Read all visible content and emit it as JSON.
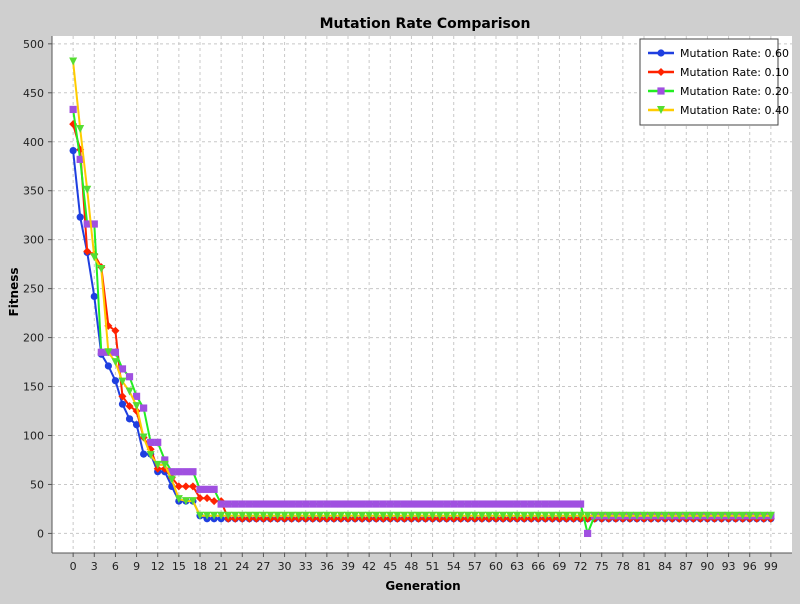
{
  "chart_data": {
    "type": "line",
    "title": "Mutation Rate Comparison",
    "xlabel": "Generation",
    "ylabel": "Fitness",
    "xlim": [
      -3,
      102
    ],
    "ylim": [
      -20,
      508
    ],
    "x_ticks": [
      0,
      3,
      6,
      9,
      12,
      15,
      18,
      21,
      24,
      27,
      30,
      33,
      36,
      39,
      42,
      45,
      48,
      51,
      54,
      57,
      60,
      63,
      66,
      69,
      72,
      75,
      78,
      81,
      84,
      87,
      90,
      93,
      96,
      99
    ],
    "y_ticks": [
      0,
      50,
      100,
      150,
      200,
      250,
      300,
      350,
      400,
      450,
      500
    ],
    "grid": true,
    "legend_position": "top-right",
    "series": [
      {
        "name": "Mutation Rate: 0.60",
        "color": "#1f3fe0",
        "marker": "circle",
        "x": [
          0,
          1,
          2,
          3,
          4,
          5,
          6,
          7,
          8,
          9,
          10,
          11,
          12,
          13,
          14,
          15,
          16,
          17,
          18,
          19,
          20,
          21,
          22,
          23,
          24,
          25,
          26,
          27,
          28,
          29,
          30,
          31,
          32,
          33,
          34,
          35,
          36,
          37,
          38,
          39,
          40,
          41,
          42,
          43,
          44,
          45,
          46,
          47,
          48,
          49,
          50,
          51,
          52,
          53,
          54,
          55,
          56,
          57,
          58,
          59,
          60,
          61,
          62,
          63,
          64,
          65,
          66,
          67,
          68,
          69,
          70,
          71,
          72,
          73,
          74,
          75,
          76,
          77,
          78,
          79,
          80,
          81,
          82,
          83,
          84,
          85,
          86,
          87,
          88,
          89,
          90,
          91,
          92,
          93,
          94,
          95,
          96,
          97,
          98,
          99
        ],
        "y": [
          391,
          323,
          287,
          242,
          183,
          171,
          156,
          132,
          117,
          111,
          81,
          81,
          63,
          63,
          48,
          33,
          33,
          33,
          18,
          15,
          15,
          15,
          15,
          15,
          15,
          15,
          15,
          15,
          15,
          15,
          15,
          15,
          15,
          15,
          15,
          15,
          15,
          15,
          15,
          15,
          15,
          15,
          15,
          15,
          15,
          15,
          15,
          15,
          15,
          15,
          15,
          15,
          15,
          15,
          15,
          15,
          15,
          15,
          15,
          15,
          15,
          15,
          15,
          15,
          15,
          15,
          15,
          15,
          15,
          15,
          15,
          15,
          15,
          15,
          15,
          15,
          15,
          15,
          15,
          15,
          15,
          15,
          15,
          15,
          15,
          15,
          15,
          15,
          15,
          15,
          15,
          15,
          15,
          15,
          15,
          15,
          15,
          15,
          15,
          15
        ]
      },
      {
        "name": "Mutation Rate: 0.10",
        "color": "#ff2200",
        "marker": "diamond",
        "x": [
          0,
          1,
          2,
          3,
          4,
          5,
          6,
          7,
          8,
          9,
          10,
          11,
          12,
          13,
          14,
          15,
          16,
          17,
          18,
          19,
          20,
          21,
          22,
          23,
          24,
          25,
          26,
          27,
          28,
          29,
          30,
          31,
          32,
          33,
          34,
          35,
          36,
          37,
          38,
          39,
          40,
          41,
          42,
          43,
          44,
          45,
          46,
          47,
          48,
          49,
          50,
          51,
          52,
          53,
          54,
          55,
          56,
          57,
          58,
          59,
          60,
          61,
          62,
          63,
          64,
          65,
          66,
          67,
          68,
          69,
          70,
          71,
          72,
          73,
          74,
          75,
          76,
          77,
          78,
          79,
          80,
          81,
          82,
          83,
          84,
          85,
          86,
          87,
          88,
          89,
          90,
          91,
          92,
          93,
          94,
          95,
          96,
          97,
          98,
          99
        ],
        "y": [
          418,
          392,
          288,
          285,
          272,
          212,
          207,
          140,
          130,
          125,
          98,
          86,
          66,
          66,
          57,
          48,
          48,
          48,
          36,
          36,
          33,
          33,
          15,
          15,
          15,
          15,
          15,
          15,
          15,
          15,
          15,
          15,
          15,
          15,
          15,
          15,
          15,
          15,
          15,
          15,
          15,
          15,
          15,
          15,
          15,
          15,
          15,
          15,
          15,
          15,
          15,
          15,
          15,
          15,
          15,
          15,
          15,
          15,
          15,
          15,
          15,
          15,
          15,
          15,
          15,
          15,
          15,
          15,
          15,
          15,
          15,
          15,
          15,
          15,
          15,
          15,
          15,
          15,
          15,
          15,
          15,
          15,
          15,
          15,
          15,
          15,
          15,
          15,
          15,
          15,
          15,
          15,
          15,
          15,
          15,
          15,
          15,
          15,
          15,
          15
        ]
      },
      {
        "name": "Mutation Rate: 0.20",
        "color": "#22ee22",
        "marker": "square",
        "marker_color": "#a050e0",
        "x": [
          0,
          1,
          2,
          3,
          4,
          5,
          6,
          7,
          8,
          9,
          10,
          11,
          12,
          13,
          14,
          15,
          16,
          17,
          18,
          19,
          20,
          21,
          22,
          23,
          24,
          25,
          26,
          27,
          28,
          29,
          30,
          31,
          32,
          33,
          34,
          35,
          36,
          37,
          38,
          39,
          40,
          41,
          42,
          43,
          44,
          45,
          46,
          47,
          48,
          49,
          50,
          51,
          52,
          53,
          54,
          55,
          56,
          57,
          58,
          59,
          60,
          61,
          62,
          63,
          64,
          65,
          66,
          67,
          68,
          69,
          70,
          71,
          72,
          73,
          74,
          75,
          76,
          77,
          78,
          79,
          80,
          81,
          82,
          83,
          84,
          85,
          86,
          87,
          88,
          89,
          90,
          91,
          92,
          93,
          94,
          95,
          96,
          97,
          98,
          99
        ],
        "y": [
          433,
          382,
          316,
          316,
          185,
          185,
          185,
          168,
          160,
          140,
          128,
          93,
          93,
          75,
          63,
          63,
          63,
          63,
          45,
          45,
          45,
          30,
          30,
          30,
          30,
          30,
          30,
          30,
          30,
          30,
          30,
          30,
          30,
          30,
          30,
          30,
          30,
          30,
          30,
          30,
          30,
          30,
          30,
          30,
          30,
          30,
          30,
          30,
          30,
          30,
          30,
          30,
          30,
          30,
          30,
          30,
          30,
          30,
          30,
          30,
          30,
          30,
          30,
          30,
          30,
          30,
          30,
          30,
          30,
          30,
          30,
          30,
          30,
          0,
          18,
          18,
          18,
          18,
          18,
          18,
          18,
          18,
          18,
          18,
          18,
          18,
          18,
          18,
          18,
          18,
          18,
          18,
          18,
          18,
          18,
          18,
          18,
          18,
          18,
          18
        ]
      },
      {
        "name": "Mutation Rate: 0.40",
        "color": "#ffcc00",
        "marker": "triangle-down",
        "marker_color": "#55dd33",
        "x": [
          0,
          1,
          2,
          3,
          4,
          5,
          6,
          7,
          8,
          9,
          10,
          11,
          12,
          13,
          14,
          15,
          16,
          17,
          18,
          19,
          20,
          21,
          22,
          23,
          24,
          25,
          26,
          27,
          28,
          29,
          30,
          31,
          32,
          33,
          34,
          35,
          36,
          37,
          38,
          39,
          40,
          41,
          42,
          43,
          44,
          45,
          46,
          47,
          48,
          49,
          50,
          51,
          52,
          53,
          54,
          55,
          56,
          57,
          58,
          59,
          60,
          61,
          62,
          63,
          64,
          65,
          66,
          67,
          68,
          69,
          70,
          71,
          72,
          73,
          74,
          75,
          76,
          77,
          78,
          79,
          80,
          81,
          82,
          83,
          84,
          85,
          86,
          87,
          88,
          89,
          90,
          91,
          92,
          93,
          94,
          95,
          96,
          97,
          98,
          99
        ],
        "y": [
          482,
          413,
          351,
          282,
          270,
          185,
          175,
          155,
          145,
          130,
          98,
          80,
          70,
          70,
          55,
          35,
          33,
          33,
          18,
          18,
          18,
          18,
          18,
          18,
          18,
          18,
          18,
          18,
          18,
          18,
          18,
          18,
          18,
          18,
          18,
          18,
          18,
          18,
          18,
          18,
          18,
          18,
          18,
          18,
          18,
          18,
          18,
          18,
          18,
          18,
          18,
          18,
          18,
          18,
          18,
          18,
          18,
          18,
          18,
          18,
          18,
          18,
          18,
          18,
          18,
          18,
          18,
          18,
          18,
          18,
          18,
          18,
          18,
          18,
          18,
          18,
          18,
          18,
          18,
          18,
          18,
          18,
          18,
          18,
          18,
          18,
          18,
          18,
          18,
          18,
          18,
          18,
          18,
          18,
          18,
          18,
          18,
          18,
          18,
          18
        ]
      }
    ]
  }
}
